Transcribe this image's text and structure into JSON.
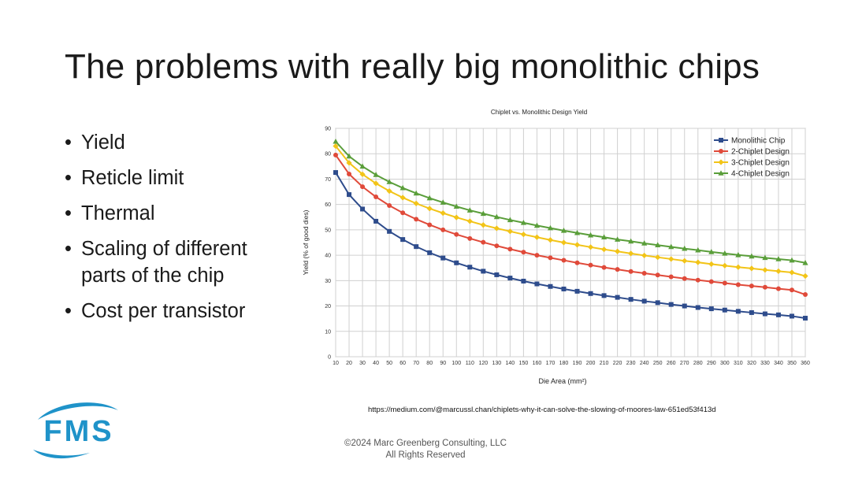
{
  "slide": {
    "title": "The problems with really big monolithic chips",
    "bullets": [
      "Yield",
      "Reticle limit",
      "Thermal",
      "Scaling of different parts of the chip",
      "Cost per transistor"
    ],
    "source_url": "https://medium.com/@marcussl.chan/chiplets-why-it-can-solve-the-slowing-of-moores-law-651ed53f413d",
    "copyright_line1": "©2024 Marc Greenberg Consulting, LLC",
    "copyright_line2": "All Rights Reserved",
    "logo_text": "FMS",
    "logo_color": "#1f93c9"
  },
  "chart_data": {
    "type": "line",
    "title": "Chiplet vs. Monolithic Design Yield",
    "xlabel": "Die Area (mm²)",
    "ylabel": "Yield (% of good dies)",
    "xlim": [
      10,
      360
    ],
    "ylim": [
      0,
      90
    ],
    "x_tick_step": 10,
    "y_tick_step": 10,
    "grid": true,
    "legend_position": "top-right",
    "x": [
      10,
      20,
      30,
      40,
      50,
      60,
      70,
      80,
      90,
      100,
      110,
      120,
      130,
      140,
      150,
      160,
      170,
      180,
      190,
      200,
      210,
      220,
      230,
      240,
      250,
      260,
      270,
      280,
      290,
      300,
      310,
      320,
      330,
      340,
      350,
      360
    ],
    "series": [
      {
        "name": "Monolithic Chip",
        "color": "#2e4c8c",
        "marker": "square",
        "values": [
          72.6,
          63.9,
          58.2,
          53.4,
          49.4,
          46.2,
          43.4,
          41.0,
          38.9,
          37.0,
          35.3,
          33.7,
          32.3,
          31.0,
          29.8,
          28.7,
          27.7,
          26.7,
          25.8,
          24.9,
          24.1,
          23.4,
          22.6,
          21.9,
          21.3,
          20.6,
          20.0,
          19.4,
          18.9,
          18.4,
          17.9,
          17.4,
          16.9,
          16.5,
          16.0,
          15.2
        ]
      },
      {
        "name": "2-Chiplet Design",
        "color": "#e04a3a",
        "marker": "circle",
        "values": [
          79.5,
          72.0,
          67.0,
          63.0,
          59.6,
          56.7,
          54.2,
          52.0,
          50.0,
          48.2,
          46.6,
          45.1,
          43.7,
          42.4,
          41.2,
          40.0,
          39.0,
          38.0,
          37.0,
          36.1,
          35.2,
          34.4,
          33.6,
          32.9,
          32.2,
          31.5,
          30.8,
          30.2,
          29.6,
          29.0,
          28.4,
          27.9,
          27.4,
          26.8,
          26.3,
          24.5
        ]
      },
      {
        "name": "3-Chiplet Design",
        "color": "#f2c418",
        "marker": "diamond",
        "values": [
          83.0,
          76.4,
          71.9,
          68.3,
          65.3,
          62.7,
          60.4,
          58.4,
          56.6,
          54.9,
          53.4,
          51.9,
          50.6,
          49.4,
          48.2,
          47.1,
          46.0,
          45.0,
          44.1,
          43.2,
          42.3,
          41.5,
          40.7,
          39.9,
          39.2,
          38.5,
          37.8,
          37.2,
          36.5,
          35.9,
          35.3,
          34.8,
          34.2,
          33.7,
          33.2,
          31.8
        ]
      },
      {
        "name": "4-Chiplet Design",
        "color": "#5a9e3a",
        "marker": "triangle",
        "values": [
          84.8,
          79.0,
          75.0,
          71.7,
          68.9,
          66.5,
          64.4,
          62.5,
          60.8,
          59.2,
          57.7,
          56.4,
          55.1,
          53.9,
          52.8,
          51.7,
          50.7,
          49.7,
          48.8,
          47.9,
          47.1,
          46.2,
          45.5,
          44.7,
          44.0,
          43.3,
          42.6,
          42.0,
          41.3,
          40.7,
          40.1,
          39.6,
          39.0,
          38.5,
          38.0,
          37.0
        ]
      }
    ]
  }
}
